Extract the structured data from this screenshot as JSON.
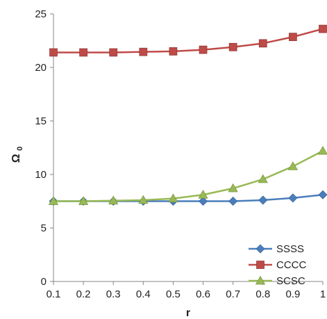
{
  "chart_data": {
    "type": "line",
    "xlabel": "r",
    "ylabel": "Ω",
    "ylabel_subscript": "0",
    "x": [
      0.1,
      0.2,
      0.3,
      0.4,
      0.5,
      0.6,
      0.7,
      0.8,
      0.9,
      1.0
    ],
    "x_tick_labels": [
      "0.1",
      "0.2",
      "0.3",
      "0.4",
      "0.5",
      "0.6",
      "0.7",
      "0.8",
      "0.9",
      "1"
    ],
    "y_ticks": [
      0,
      5,
      10,
      15,
      20,
      25
    ],
    "y_tick_labels": [
      "0",
      "5",
      "10",
      "15",
      "20",
      "25"
    ],
    "ylim": [
      0,
      25
    ],
    "grid": false,
    "legend_position": "bottom-right",
    "series": [
      {
        "name": "SSSS",
        "marker": "diamond",
        "color": "#4a7ebb",
        "values": [
          7.5,
          7.5,
          7.5,
          7.5,
          7.5,
          7.5,
          7.5,
          7.6,
          7.8,
          8.1
        ]
      },
      {
        "name": "CCCC",
        "marker": "square",
        "color": "#be4b48",
        "values": [
          21.4,
          21.4,
          21.4,
          21.45,
          21.5,
          21.65,
          21.9,
          22.25,
          22.85,
          23.6
        ]
      },
      {
        "name": "SCSC",
        "marker": "triangle",
        "color": "#98b954",
        "values": [
          7.5,
          7.5,
          7.55,
          7.6,
          7.75,
          8.1,
          8.7,
          9.55,
          10.75,
          12.2
        ]
      }
    ]
  }
}
